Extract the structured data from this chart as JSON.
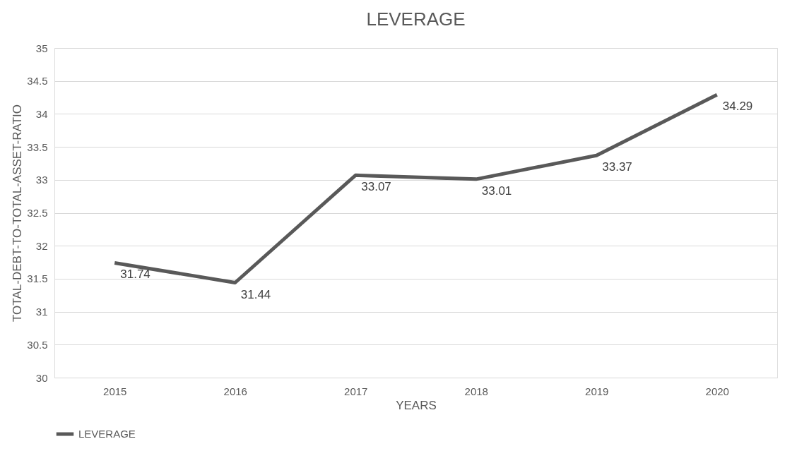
{
  "chart_data": {
    "type": "line",
    "title": "LEVERAGE",
    "xlabel": "YEARS",
    "ylabel": "TOTAL-DEBT-TO-TOTAL-ASSET-RATIO",
    "categories": [
      "2015",
      "2016",
      "2017",
      "2018",
      "2019",
      "2020"
    ],
    "series": [
      {
        "name": "LEVERAGE",
        "color": "#595959",
        "values": [
          31.74,
          31.44,
          33.07,
          33.01,
          33.37,
          34.29
        ]
      }
    ],
    "ylim": [
      30,
      35
    ],
    "yticks": [
      30,
      30.5,
      31,
      31.5,
      32,
      32.5,
      33,
      33.5,
      34,
      34.5,
      35
    ],
    "grid": "y",
    "legend": "bottom",
    "data_labels": true,
    "marker": "none",
    "line_style": "solid"
  }
}
